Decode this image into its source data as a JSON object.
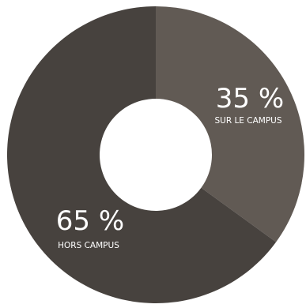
{
  "chart_data": {
    "type": "pie",
    "subtype": "donut",
    "slices": [
      {
        "value_label": "35 %",
        "label": "SUR LE CAMPUS",
        "value": 35,
        "color": "#615a54"
      },
      {
        "value_label": "65 %",
        "label": "HORS CAMPUS",
        "value": 65,
        "color": "#47423e"
      }
    ],
    "start_angle": "12 o'clock",
    "direction": "clockwise",
    "title": "",
    "legend": "none"
  }
}
